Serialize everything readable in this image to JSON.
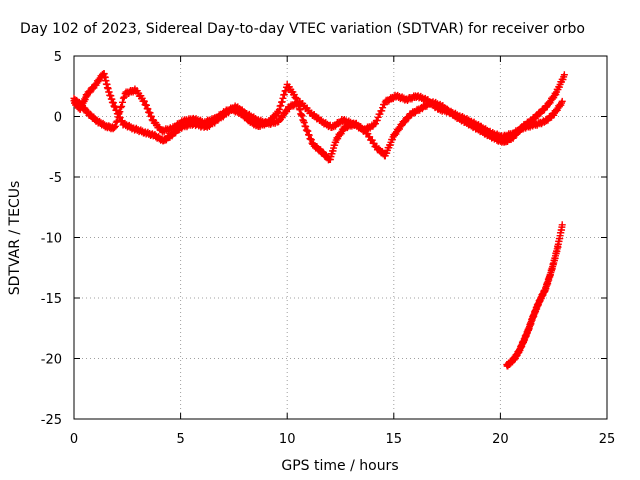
{
  "chart_data": {
    "type": "scatter",
    "title": "Day 102 of 2023, Sidereal Day-to-day VTEC variation (SDTVAR) for receiver orbo",
    "xlabel": "GPS time / hours",
    "ylabel": "SDTVAR / TECUs",
    "xlim": [
      0,
      25
    ],
    "ylim": [
      -25,
      5
    ],
    "xticks": [
      0,
      5,
      10,
      15,
      20,
      25
    ],
    "yticks": [
      5,
      0,
      -5,
      -10,
      -15,
      -20,
      -25
    ],
    "grid": true,
    "marker": "+",
    "color": "#ff0000",
    "series": [
      {
        "name": "track-a",
        "x": [
          0.0,
          0.3,
          0.6,
          1.0,
          1.4,
          1.6,
          1.9,
          2.3,
          2.8,
          3.3,
          3.8,
          4.2,
          4.6,
          5.0,
          5.6,
          6.2,
          6.8,
          7.4,
          7.8,
          8.2,
          8.6,
          9.1,
          9.6,
          10.0,
          10.4,
          10.8,
          11.2,
          11.6,
          12.0,
          12.3,
          12.7,
          13.2,
          13.7,
          14.2,
          14.6,
          15.0,
          15.4,
          15.8,
          16.3,
          16.8,
          17.3,
          17.8,
          18.3,
          18.8,
          19.3,
          19.8,
          20.2,
          20.6,
          21.0,
          21.4,
          21.8,
          22.2,
          22.6,
          23.0
        ],
        "y": [
          1.2,
          0.6,
          1.8,
          2.6,
          3.6,
          2.2,
          0.8,
          -0.6,
          -1.0,
          -1.3,
          -1.6,
          -2.0,
          -1.5,
          -0.9,
          -0.6,
          -0.9,
          -0.2,
          0.6,
          0.3,
          -0.3,
          -0.8,
          -0.5,
          0.4,
          2.6,
          1.6,
          -0.6,
          -2.3,
          -2.9,
          -3.6,
          -1.9,
          -0.9,
          -0.6,
          -1.3,
          -2.6,
          -3.2,
          -1.6,
          -0.6,
          0.2,
          0.7,
          1.2,
          0.8,
          0.1,
          -0.4,
          -0.9,
          -1.4,
          -1.9,
          -2.1,
          -1.7,
          -0.9,
          -0.4,
          0.2,
          0.9,
          1.9,
          3.4
        ]
      },
      {
        "name": "track-b",
        "x": [
          0.0,
          0.3,
          0.7,
          1.1,
          1.5,
          1.9,
          2.4,
          2.9,
          3.3,
          3.7,
          4.1,
          4.6,
          5.1,
          5.6,
          6.1,
          6.6,
          7.1,
          7.6,
          8.1,
          8.6,
          9.1,
          9.6,
          10.1,
          10.6,
          11.1,
          11.6,
          12.1,
          12.6,
          13.1,
          13.6,
          14.1,
          14.6,
          15.1,
          15.6,
          16.1,
          16.6,
          17.1,
          17.6,
          18.1,
          18.6,
          19.1,
          19.6,
          20.1,
          20.6,
          21.1,
          21.6,
          22.1,
          22.5,
          22.9
        ],
        "y": [
          1.4,
          1.0,
          0.2,
          -0.4,
          -0.8,
          -1.0,
          1.9,
          2.2,
          1.2,
          -0.3,
          -1.2,
          -1.0,
          -0.4,
          -0.2,
          -0.5,
          -0.2,
          0.4,
          0.8,
          0.2,
          -0.3,
          -0.6,
          -0.4,
          0.8,
          1.2,
          0.3,
          -0.4,
          -0.9,
          -0.3,
          -0.6,
          -1.1,
          -0.7,
          1.2,
          1.7,
          1.4,
          1.7,
          1.3,
          0.6,
          0.4,
          0.0,
          -0.4,
          -0.9,
          -1.4,
          -1.7,
          -1.4,
          -0.9,
          -0.7,
          -0.4,
          0.2,
          1.2
        ]
      },
      {
        "name": "track-c",
        "x": [
          20.3,
          20.5,
          20.7,
          20.9,
          21.1,
          21.3,
          21.5,
          21.7,
          21.9,
          22.1,
          22.3,
          22.5,
          22.7,
          22.9
        ],
        "y": [
          -20.6,
          -20.3,
          -19.9,
          -19.3,
          -18.5,
          -17.7,
          -16.7,
          -15.8,
          -15.0,
          -14.3,
          -13.3,
          -12.1,
          -10.7,
          -9.0
        ]
      }
    ]
  }
}
